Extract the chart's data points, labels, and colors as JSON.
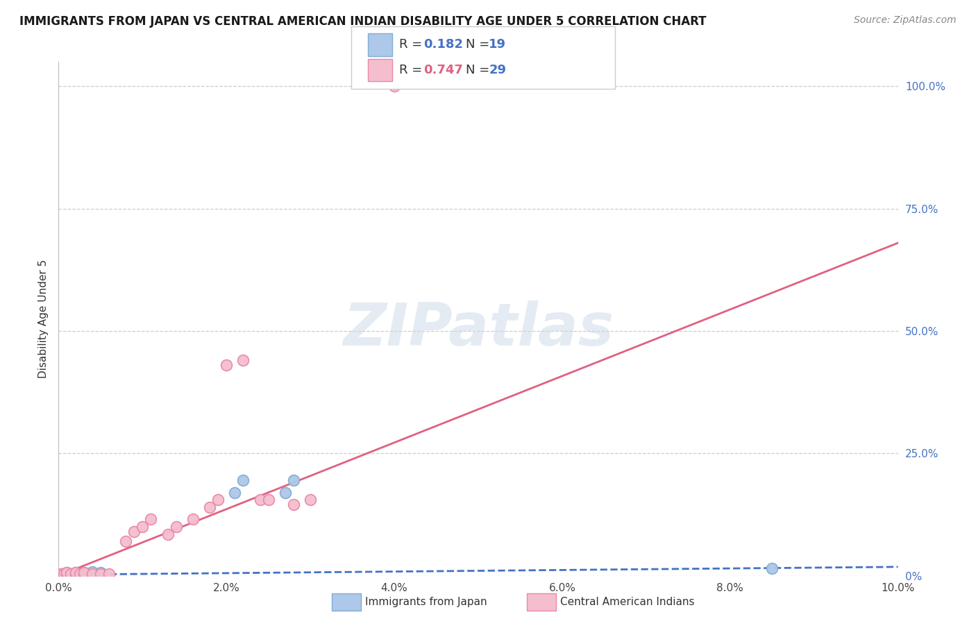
{
  "title": "IMMIGRANTS FROM JAPAN VS CENTRAL AMERICAN INDIAN DISABILITY AGE UNDER 5 CORRELATION CHART",
  "source": "Source: ZipAtlas.com",
  "ylabel": "Disability Age Under 5",
  "xlim": [
    0.0,
    0.1
  ],
  "ylim": [
    0.0,
    1.05
  ],
  "xticks": [
    0.0,
    0.02,
    0.04,
    0.06,
    0.08,
    0.1
  ],
  "xtick_labels": [
    "0.0%",
    "2.0%",
    "4.0%",
    "6.0%",
    "8.0%",
    "10.0%"
  ],
  "yticks_right": [
    0.0,
    0.25,
    0.5,
    0.75,
    1.0
  ],
  "ytick_labels_right": [
    "0%",
    "25.0%",
    "50.0%",
    "75.0%",
    "100.0%"
  ],
  "grid_color": "#cccccc",
  "background_color": "#ffffff",
  "japan_color": "#adc8e8",
  "japan_edge_color": "#80acd4",
  "japan_scatter_x": [
    0.0005,
    0.0008,
    0.001,
    0.001,
    0.0015,
    0.002,
    0.002,
    0.0025,
    0.003,
    0.003,
    0.004,
    0.004,
    0.005,
    0.005,
    0.021,
    0.022,
    0.027,
    0.028,
    0.085
  ],
  "japan_scatter_y": [
    0.003,
    0.003,
    0.003,
    0.006,
    0.003,
    0.003,
    0.006,
    0.003,
    0.003,
    0.006,
    0.003,
    0.008,
    0.003,
    0.006,
    0.17,
    0.195,
    0.17,
    0.195,
    0.015
  ],
  "japan_R": 0.182,
  "japan_N": 19,
  "japan_line_color": "#4472c4",
  "japan_line_style": "--",
  "japan_trend_x": [
    0.0,
    0.1
  ],
  "japan_trend_y": [
    0.002,
    0.018
  ],
  "ca_indian_color": "#f5bece",
  "ca_indian_edge_color": "#e888a8",
  "ca_indian_scatter_x": [
    0.0003,
    0.0006,
    0.001,
    0.001,
    0.0015,
    0.002,
    0.002,
    0.0025,
    0.003,
    0.003,
    0.004,
    0.005,
    0.006,
    0.008,
    0.009,
    0.01,
    0.011,
    0.013,
    0.014,
    0.016,
    0.018,
    0.019,
    0.02,
    0.022,
    0.024,
    0.025,
    0.028,
    0.03,
    0.04
  ],
  "ca_indian_scatter_y": [
    0.003,
    0.003,
    0.003,
    0.006,
    0.003,
    0.003,
    0.006,
    0.003,
    0.003,
    0.006,
    0.003,
    0.003,
    0.003,
    0.07,
    0.09,
    0.1,
    0.115,
    0.085,
    0.1,
    0.115,
    0.14,
    0.155,
    0.43,
    0.44,
    0.155,
    0.155,
    0.145,
    0.155,
    1.0
  ],
  "ca_indian_R": 0.747,
  "ca_indian_N": 29,
  "ca_indian_line_color": "#e06080",
  "ca_indian_line_style": "-",
  "ca_indian_trend_x": [
    0.0,
    0.1
  ],
  "ca_indian_trend_y": [
    0.0,
    0.68
  ],
  "watermark_color": "#ccd8e8",
  "title_fontsize": 12,
  "source_fontsize": 10,
  "axis_label_fontsize": 11,
  "tick_fontsize": 11,
  "legend_text_color": "#333333",
  "legend_R_value_color_japan": "#4472c4",
  "legend_R_value_color_ca": "#e06080",
  "legend_N_value_color": "#4472c4",
  "right_tick_color": "#4472c4"
}
